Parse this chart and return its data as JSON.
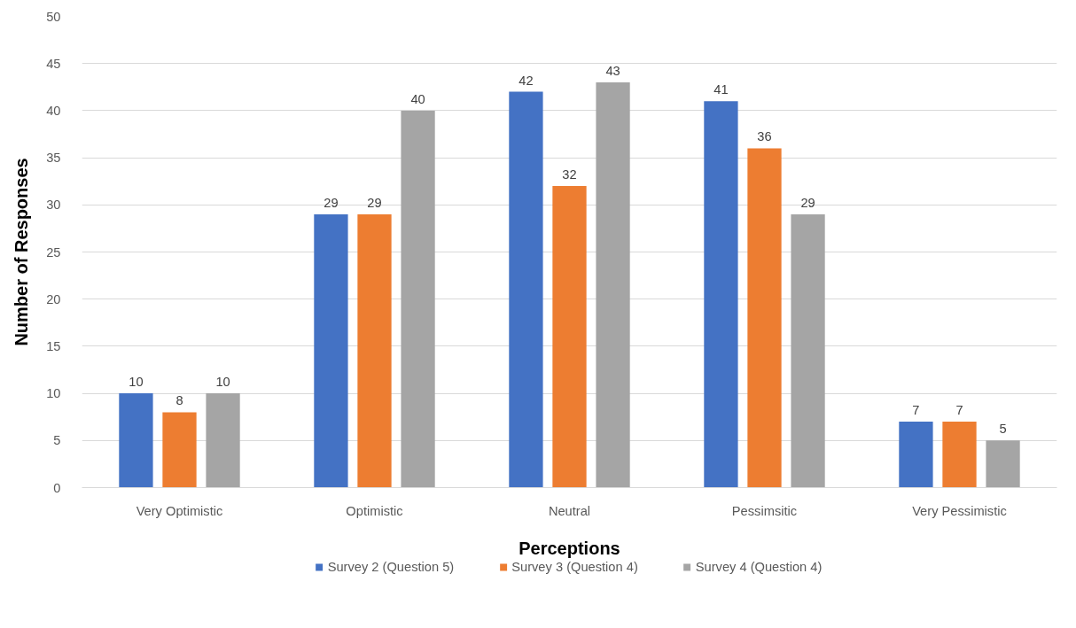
{
  "chart_data": {
    "type": "bar",
    "xlabel": "Perceptions",
    "ylabel": "Number of Responses",
    "categories": [
      "Very Optimistic",
      "Optimistic",
      "Neutral",
      "Pessimsitic",
      "Very Pessimistic"
    ],
    "series": [
      {
        "name": "Survey 2 (Question 5)",
        "color": "#4472c4",
        "values": [
          10,
          29,
          42,
          41,
          7
        ]
      },
      {
        "name": "Survey 3 (Question 4)",
        "color": "#ed7d31",
        "values": [
          8,
          29,
          32,
          36,
          7
        ]
      },
      {
        "name": "Survey 4 (Question 4)",
        "color": "#a5a5a5",
        "values": [
          10,
          40,
          43,
          29,
          5
        ]
      }
    ],
    "ylim": [
      0,
      50
    ],
    "yticks": [
      0,
      5,
      10,
      15,
      20,
      25,
      30,
      35,
      40,
      45,
      50
    ],
    "grid": "y",
    "legend": "bottom",
    "data_labels": true
  }
}
